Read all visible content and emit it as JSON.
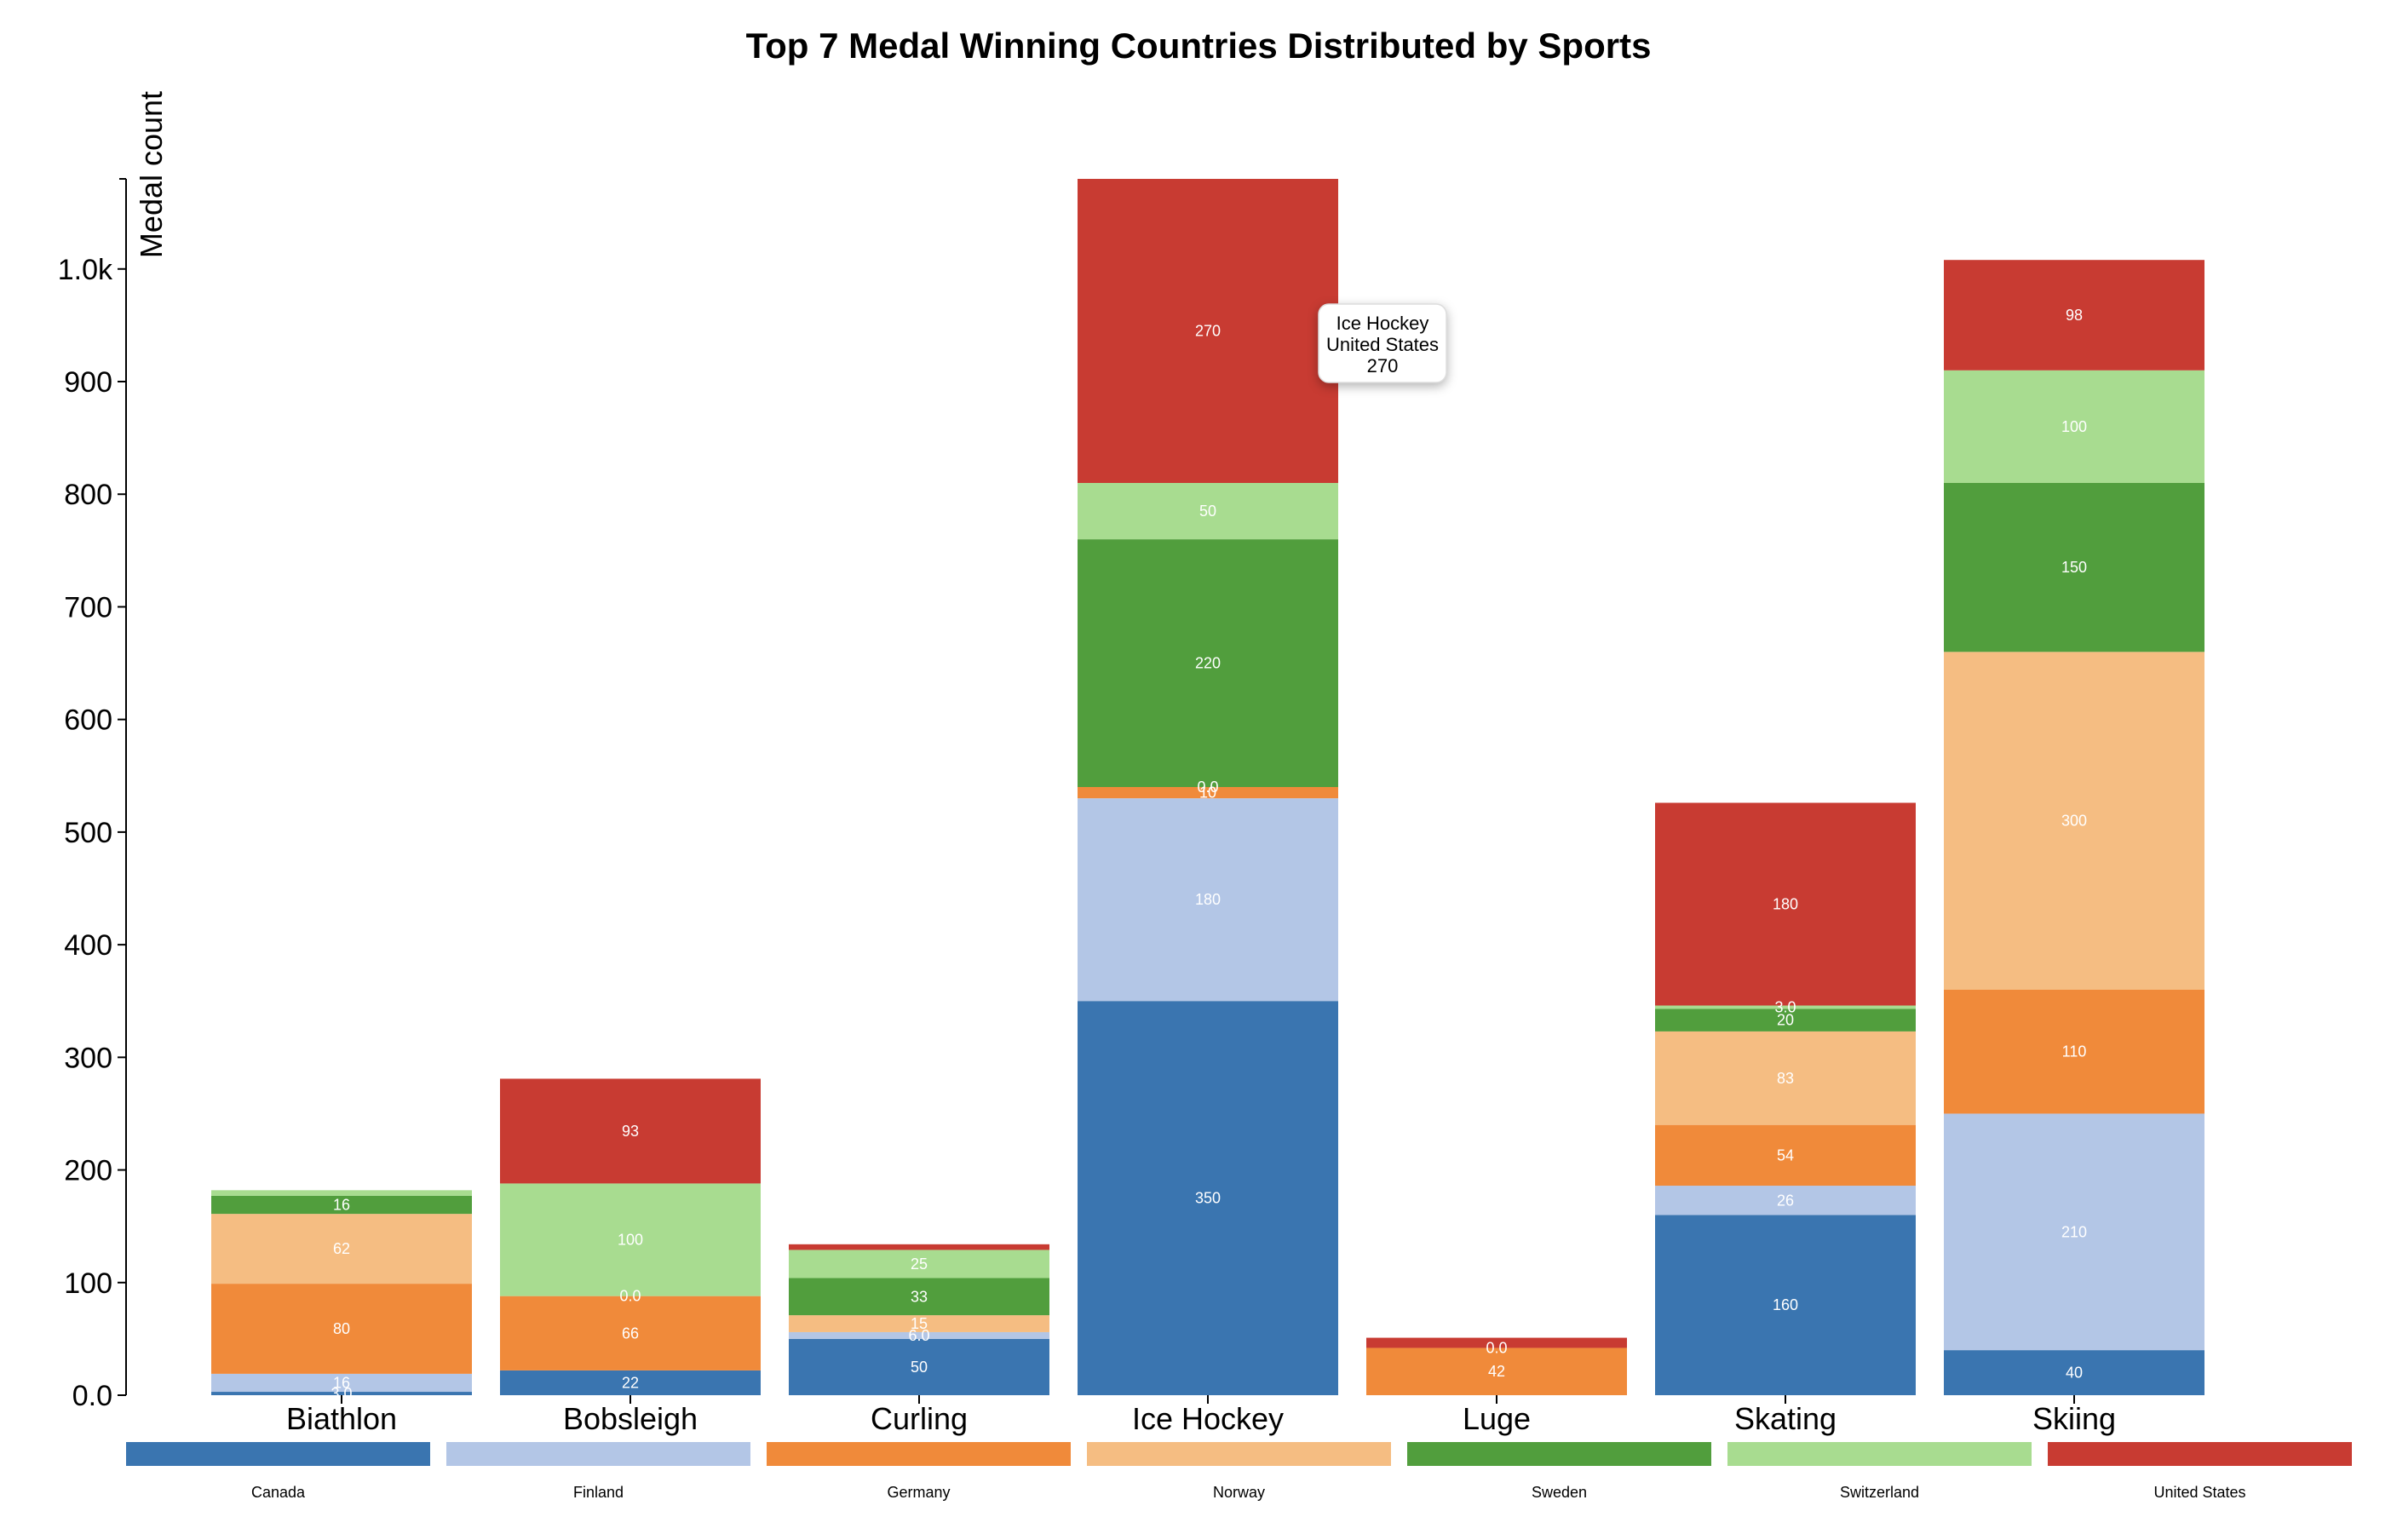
{
  "chart_data": {
    "type": "bar",
    "stacked": true,
    "title": "Top 7 Medal Winning Countries Distributed by Sports",
    "ylabel": "Medal count",
    "xlabel": "",
    "ylim": [
      0,
      1080
    ],
    "yticks": [
      0,
      100,
      200,
      300,
      400,
      500,
      600,
      700,
      800,
      900,
      1000
    ],
    "ytick_labels": [
      "0.0",
      "100",
      "200",
      "300",
      "400",
      "500",
      "600",
      "700",
      "800",
      "900",
      "1.0k"
    ],
    "grid": false,
    "legend_position": "bottom",
    "categories": [
      "Biathlon",
      "Bobsleigh",
      "Curling",
      "Ice Hockey",
      "Luge",
      "Skating",
      "Skiing"
    ],
    "series": [
      {
        "name": "Canada",
        "color": "#3a75b0",
        "values": [
          3,
          22,
          50,
          350,
          0,
          160,
          40
        ],
        "labels": [
          "3.0",
          "22",
          "50",
          "350",
          "",
          "160",
          "40"
        ]
      },
      {
        "name": "Finland",
        "color": "#b3c6e6",
        "values": [
          16,
          0,
          6,
          180,
          0,
          26,
          210
        ],
        "labels": [
          "16",
          "",
          "6.0",
          "180",
          "",
          "26",
          "210"
        ]
      },
      {
        "name": "Germany",
        "color": "#f08a3a",
        "values": [
          80,
          66,
          0,
          10,
          42,
          54,
          110
        ],
        "labels": [
          "80",
          "66",
          "",
          "10",
          "42",
          "54",
          "110"
        ]
      },
      {
        "name": "Norway",
        "color": "#f5bd82",
        "values": [
          62,
          0,
          15,
          0,
          0,
          83,
          300
        ],
        "labels": [
          "62",
          "0.0",
          "15",
          "0.0",
          "0.0",
          "83",
          "300"
        ]
      },
      {
        "name": "Sweden",
        "color": "#519e3d",
        "values": [
          16,
          0,
          33,
          220,
          0,
          20,
          150
        ],
        "labels": [
          "16",
          "",
          "33",
          "220",
          "",
          "20",
          "150"
        ]
      },
      {
        "name": "Switzerland",
        "color": "#a8dc90",
        "values": [
          5,
          100,
          25,
          50,
          0,
          3,
          100
        ],
        "labels": [
          "",
          "100",
          "25",
          "50",
          "",
          "3.0",
          "100"
        ]
      },
      {
        "name": "United States",
        "color": "#c83b32",
        "values": [
          0,
          93,
          5,
          270,
          9,
          180,
          98
        ],
        "labels": [
          "",
          "93",
          "",
          "270",
          "",
          "180",
          "98"
        ]
      }
    ],
    "tooltip": {
      "category": "Ice Hockey",
      "series": "United States",
      "value": "270"
    }
  }
}
